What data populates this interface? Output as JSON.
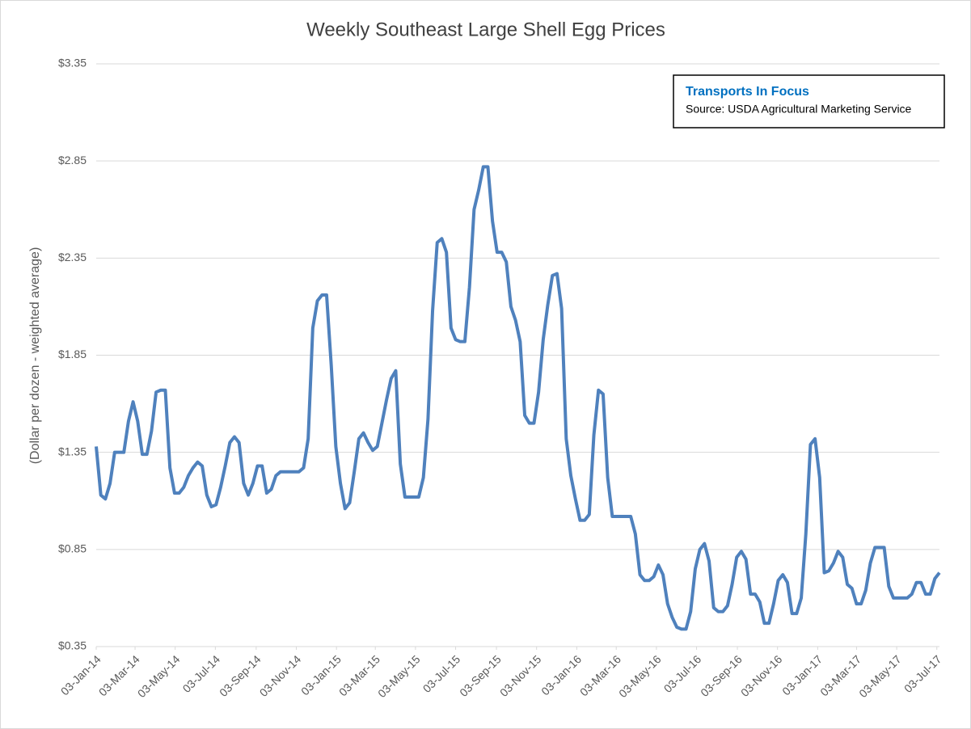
{
  "chart_data": {
    "type": "line",
    "title": "Weekly Southeast Large Shell Egg Prices",
    "y_label": "(Dollar per dozen - weighted average)",
    "annotations": [
      "Transports  In Focus",
      "Source: USDA Agricultural Marketing Service"
    ],
    "color": "#4f81bd",
    "grid": true,
    "x": [
      "2014-01-03",
      "2014-01-10",
      "2014-01-17",
      "2014-01-24",
      "2014-01-31",
      "2014-02-07",
      "2014-02-14",
      "2014-02-21",
      "2014-02-28",
      "2014-03-07",
      "2014-03-14",
      "2014-03-21",
      "2014-03-28",
      "2014-04-04",
      "2014-04-11",
      "2014-04-18",
      "2014-04-25",
      "2014-05-02",
      "2014-05-09",
      "2014-05-16",
      "2014-05-23",
      "2014-05-30",
      "2014-06-06",
      "2014-06-13",
      "2014-06-20",
      "2014-06-27",
      "2014-07-04",
      "2014-07-11",
      "2014-07-18",
      "2014-07-25",
      "2014-08-01",
      "2014-08-08",
      "2014-08-15",
      "2014-08-22",
      "2014-08-29",
      "2014-09-05",
      "2014-09-12",
      "2014-09-19",
      "2014-09-26",
      "2014-10-03",
      "2014-10-10",
      "2014-10-17",
      "2014-10-24",
      "2014-10-31",
      "2014-11-07",
      "2014-11-14",
      "2014-11-21",
      "2014-11-28",
      "2014-12-05",
      "2014-12-12",
      "2014-12-19",
      "2014-12-26",
      "2015-01-02",
      "2015-01-09",
      "2015-01-16",
      "2015-01-23",
      "2015-01-30",
      "2015-02-06",
      "2015-02-13",
      "2015-02-20",
      "2015-02-27",
      "2015-03-06",
      "2015-03-13",
      "2015-03-20",
      "2015-03-27",
      "2015-04-03",
      "2015-04-10",
      "2015-04-17",
      "2015-04-24",
      "2015-05-01",
      "2015-05-08",
      "2015-05-15",
      "2015-05-22",
      "2015-05-29",
      "2015-06-05",
      "2015-06-12",
      "2015-06-19",
      "2015-06-26",
      "2015-07-03",
      "2015-07-10",
      "2015-07-17",
      "2015-07-24",
      "2015-07-31",
      "2015-08-07",
      "2015-08-14",
      "2015-08-21",
      "2015-08-28",
      "2015-09-04",
      "2015-09-11",
      "2015-09-18",
      "2015-09-25",
      "2015-10-02",
      "2015-10-09",
      "2015-10-16",
      "2015-10-23",
      "2015-10-30",
      "2015-11-06",
      "2015-11-13",
      "2015-11-20",
      "2015-11-27",
      "2015-12-04",
      "2015-12-11",
      "2015-12-18",
      "2015-12-25",
      "2016-01-01",
      "2016-01-08",
      "2016-01-15",
      "2016-01-22",
      "2016-01-29",
      "2016-02-05",
      "2016-02-12",
      "2016-02-19",
      "2016-02-26",
      "2016-03-04",
      "2016-03-11",
      "2016-03-18",
      "2016-03-25",
      "2016-04-01",
      "2016-04-08",
      "2016-04-15",
      "2016-04-22",
      "2016-04-29",
      "2016-05-06",
      "2016-05-13",
      "2016-05-20",
      "2016-05-27",
      "2016-06-03",
      "2016-06-10",
      "2016-06-17",
      "2016-06-24",
      "2016-07-01",
      "2016-07-08",
      "2016-07-15",
      "2016-07-22",
      "2016-07-29",
      "2016-08-05",
      "2016-08-12",
      "2016-08-19",
      "2016-08-26",
      "2016-09-02",
      "2016-09-09",
      "2016-09-16",
      "2016-09-23",
      "2016-09-30",
      "2016-10-07",
      "2016-10-14",
      "2016-10-21",
      "2016-10-28",
      "2016-11-04",
      "2016-11-11",
      "2016-11-18",
      "2016-11-25",
      "2016-12-02",
      "2016-12-09",
      "2016-12-16",
      "2016-12-23",
      "2016-12-30",
      "2017-01-06",
      "2017-01-13",
      "2017-01-20",
      "2017-01-27",
      "2017-02-03",
      "2017-02-10",
      "2017-02-17",
      "2017-02-24",
      "2017-03-03",
      "2017-03-10",
      "2017-03-17",
      "2017-03-24",
      "2017-03-31",
      "2017-04-07",
      "2017-04-14",
      "2017-04-21",
      "2017-04-28",
      "2017-05-05",
      "2017-05-12",
      "2017-05-19",
      "2017-05-26",
      "2017-06-02",
      "2017-06-09",
      "2017-06-16",
      "2017-06-23",
      "2017-06-30",
      "2017-07-07"
    ],
    "values": [
      1.38,
      1.13,
      1.11,
      1.19,
      1.35,
      1.35,
      1.35,
      1.51,
      1.61,
      1.51,
      1.34,
      1.34,
      1.46,
      1.66,
      1.67,
      1.67,
      1.27,
      1.14,
      1.14,
      1.17,
      1.23,
      1.27,
      1.3,
      1.28,
      1.13,
      1.07,
      1.08,
      1.17,
      1.28,
      1.4,
      1.43,
      1.4,
      1.19,
      1.13,
      1.19,
      1.28,
      1.28,
      1.14,
      1.16,
      1.23,
      1.25,
      1.25,
      1.25,
      1.25,
      1.25,
      1.27,
      1.42,
      1.99,
      2.13,
      2.16,
      2.16,
      1.8,
      1.38,
      1.19,
      1.06,
      1.09,
      1.25,
      1.42,
      1.45,
      1.4,
      1.36,
      1.38,
      1.5,
      1.62,
      1.73,
      1.77,
      1.29,
      1.12,
      1.12,
      1.12,
      1.12,
      1.22,
      1.52,
      2.08,
      2.43,
      2.45,
      2.38,
      1.99,
      1.93,
      1.92,
      1.92,
      2.2,
      2.6,
      2.7,
      2.82,
      2.82,
      2.54,
      2.38,
      2.38,
      2.33,
      2.1,
      2.03,
      1.92,
      1.54,
      1.5,
      1.5,
      1.66,
      1.93,
      2.11,
      2.26,
      2.27,
      2.09,
      1.42,
      1.23,
      1.11,
      1.0,
      1.0,
      1.03,
      1.44,
      1.67,
      1.65,
      1.22,
      1.02,
      1.02,
      1.02,
      1.02,
      1.02,
      0.93,
      0.72,
      0.69,
      0.69,
      0.71,
      0.77,
      0.72,
      0.57,
      0.5,
      0.45,
      0.44,
      0.44,
      0.53,
      0.75,
      0.85,
      0.88,
      0.79,
      0.55,
      0.53,
      0.53,
      0.56,
      0.67,
      0.81,
      0.84,
      0.8,
      0.62,
      0.62,
      0.58,
      0.47,
      0.47,
      0.57,
      0.69,
      0.72,
      0.68,
      0.52,
      0.52,
      0.6,
      0.93,
      1.39,
      1.42,
      1.22,
      0.73,
      0.74,
      0.78,
      0.84,
      0.81,
      0.67,
      0.65,
      0.57,
      0.57,
      0.64,
      0.78,
      0.86,
      0.86,
      0.86,
      0.66,
      0.6,
      0.6,
      0.6,
      0.6,
      0.62,
      0.68,
      0.68,
      0.62,
      0.62,
      0.7,
      0.73
    ],
    "xlim": [
      "2014-01-03",
      "2017-07-07"
    ],
    "xticks": [
      {
        "value": "2014-01-03",
        "label": "03-Jan-14"
      },
      {
        "value": "2014-03-03",
        "label": "03-Mar-14"
      },
      {
        "value": "2014-05-03",
        "label": "03-May-14"
      },
      {
        "value": "2014-07-03",
        "label": "03-Jul-14"
      },
      {
        "value": "2014-09-03",
        "label": "03-Sep-14"
      },
      {
        "value": "2014-11-03",
        "label": "03-Nov-14"
      },
      {
        "value": "2015-01-03",
        "label": "03-Jan-15"
      },
      {
        "value": "2015-03-03",
        "label": "03-Mar-15"
      },
      {
        "value": "2015-05-03",
        "label": "03-May-15"
      },
      {
        "value": "2015-07-03",
        "label": "03-Jul-15"
      },
      {
        "value": "2015-09-03",
        "label": "03-Sep-15"
      },
      {
        "value": "2015-11-03",
        "label": "03-Nov-15"
      },
      {
        "value": "2016-01-03",
        "label": "03-Jan-16"
      },
      {
        "value": "2016-03-03",
        "label": "03-Mar-16"
      },
      {
        "value": "2016-05-03",
        "label": "03-May-16"
      },
      {
        "value": "2016-07-03",
        "label": "03-Jul-16"
      },
      {
        "value": "2016-09-03",
        "label": "03-Sep-16"
      },
      {
        "value": "2016-11-03",
        "label": "03-Nov-16"
      },
      {
        "value": "2017-01-03",
        "label": "03-Jan-17"
      },
      {
        "value": "2017-03-03",
        "label": "03-Mar-17"
      },
      {
        "value": "2017-05-03",
        "label": "03-May-17"
      },
      {
        "value": "2017-07-03",
        "label": "03-Jul-17"
      }
    ],
    "ylim": [
      0.35,
      3.35
    ],
    "yticks": [
      {
        "value": 0.35,
        "label": "$0.35"
      },
      {
        "value": 0.85,
        "label": "$0.85"
      },
      {
        "value": 1.35,
        "label": "$1.35"
      },
      {
        "value": 1.85,
        "label": "$1.85"
      },
      {
        "value": 2.35,
        "label": "$2.35"
      },
      {
        "value": 2.85,
        "label": "$2.85"
      },
      {
        "value": 3.35,
        "label": "$3.35"
      }
    ]
  }
}
